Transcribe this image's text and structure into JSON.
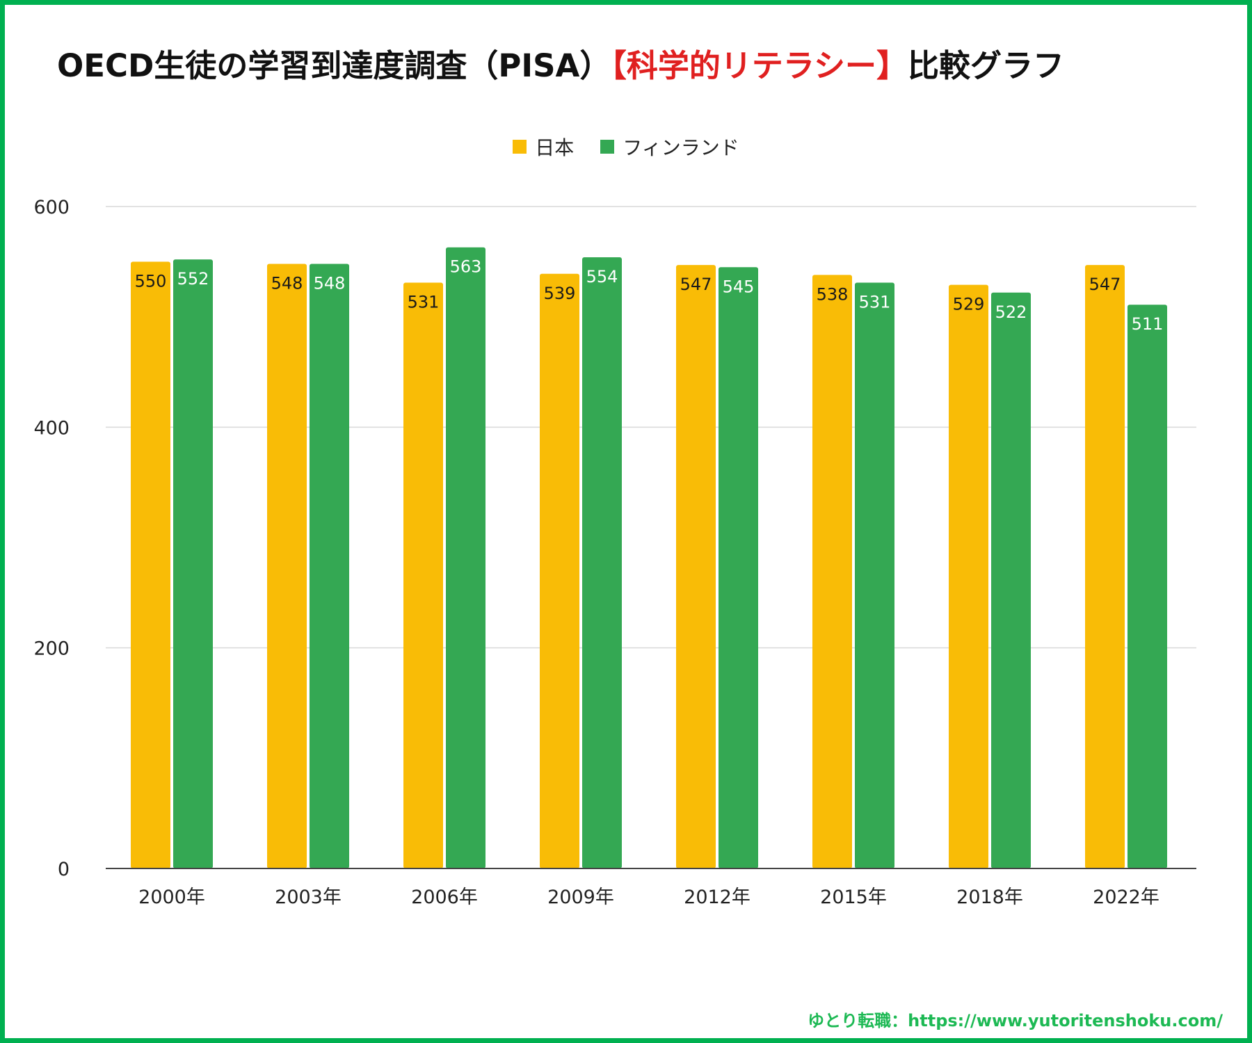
{
  "title": {
    "prefix": "OECD生徒の学習到達度調査（PISA）",
    "highlight": "【科学的リテラシー】",
    "suffix": "比較グラフ"
  },
  "footer": "ゆとり転職：https://www.yutoritenshoku.com/",
  "colors": {
    "japan": "#F9BC06",
    "finland": "#34A853",
    "highlight": "#E02020",
    "frame": "#00B050"
  },
  "chart_data": {
    "type": "bar",
    "categories": [
      "2000年",
      "2003年",
      "2006年",
      "2009年",
      "2012年",
      "2015年",
      "2018年",
      "2022年"
    ],
    "series": [
      {
        "name": "日本",
        "values": [
          550,
          548,
          531,
          539,
          547,
          538,
          529,
          547
        ]
      },
      {
        "name": "フィンランド",
        "values": [
          552,
          548,
          563,
          554,
          545,
          531,
          522,
          511
        ]
      }
    ],
    "ylim": [
      0,
      600
    ],
    "yticks": [
      0,
      200,
      400,
      600
    ],
    "grid": true,
    "legend_position": "top",
    "data_labels": true
  }
}
